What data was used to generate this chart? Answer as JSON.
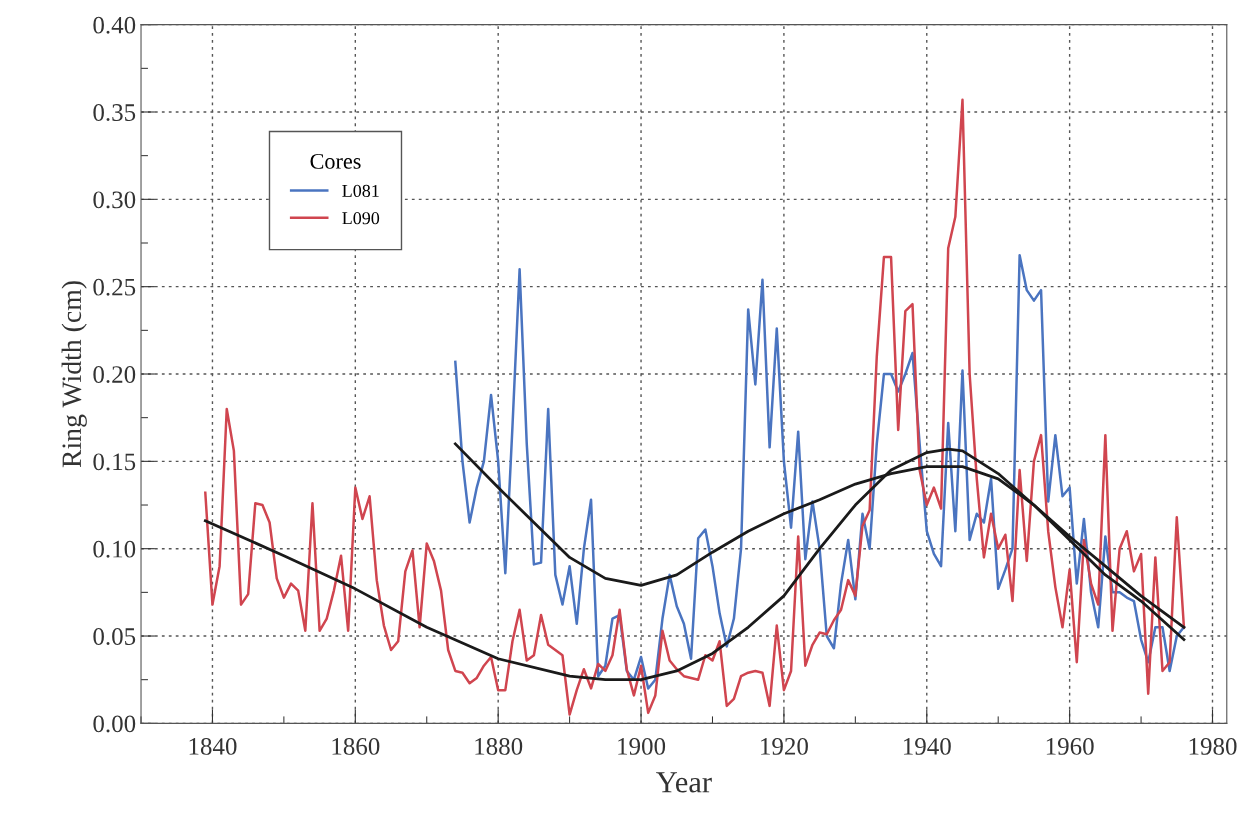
{
  "chart_data": {
    "type": "line",
    "xlabel": "Year",
    "ylabel": "Ring Width (cm)",
    "legend_title": "Cores",
    "legend": "top left",
    "grid": true,
    "marker": "none",
    "line_style": "solid",
    "xlim": [
      1830,
      1982
    ],
    "xticks": [
      1840,
      1860,
      1880,
      1900,
      1920,
      1940,
      1960,
      1980
    ],
    "ylim": [
      0,
      0.4
    ],
    "yticks": [
      {
        "value": 0,
        "label": "0.00"
      },
      {
        "value": 0.05,
        "label": "0.05"
      },
      {
        "value": 0.1,
        "label": "0.10"
      },
      {
        "value": 0.15,
        "label": "0.15"
      },
      {
        "value": 0.2,
        "label": "0.20"
      },
      {
        "value": 0.25,
        "label": "0.25"
      },
      {
        "value": 0.3,
        "label": "0.30"
      },
      {
        "value": 0.35,
        "label": "0.35"
      },
      {
        "value": 0.4,
        "label": "0.40"
      }
    ],
    "series": [
      {
        "name": "L081",
        "color": "#4a74c0",
        "x": [
          1874,
          1875,
          1876,
          1877,
          1878,
          1879,
          1880,
          1881,
          1882,
          1883,
          1884,
          1885,
          1886,
          1887,
          1888,
          1889,
          1890,
          1891,
          1892,
          1893,
          1894,
          1895,
          1896,
          1897,
          1898,
          1899,
          1900,
          1901,
          1902,
          1903,
          1904,
          1905,
          1906,
          1907,
          1908,
          1909,
          1910,
          1911,
          1912,
          1913,
          1914,
          1915,
          1916,
          1917,
          1918,
          1919,
          1920,
          1921,
          1922,
          1923,
          1924,
          1925,
          1926,
          1927,
          1928,
          1929,
          1930,
          1931,
          1932,
          1933,
          1934,
          1935,
          1936,
          1937,
          1938,
          1939,
          1940,
          1941,
          1942,
          1943,
          1944,
          1945,
          1946,
          1947,
          1948,
          1949,
          1950,
          1951,
          1952,
          1953,
          1954,
          1955,
          1956,
          1957,
          1958,
          1959,
          1960,
          1961,
          1962,
          1963,
          1964,
          1965,
          1966,
          1967,
          1968,
          1969,
          1970,
          1971,
          1972,
          1973,
          1974,
          1975,
          1976
        ],
        "values": [
          0.207,
          0.15,
          0.115,
          0.135,
          0.15,
          0.188,
          0.15,
          0.086,
          0.17,
          0.26,
          0.16,
          0.091,
          0.092,
          0.18,
          0.085,
          0.068,
          0.09,
          0.057,
          0.1,
          0.128,
          0.027,
          0.033,
          0.06,
          0.062,
          0.03,
          0.025,
          0.038,
          0.02,
          0.025,
          0.06,
          0.085,
          0.067,
          0.057,
          0.037,
          0.106,
          0.111,
          0.09,
          0.063,
          0.044,
          0.06,
          0.1,
          0.237,
          0.194,
          0.254,
          0.158,
          0.226,
          0.15,
          0.112,
          0.167,
          0.094,
          0.127,
          0.1,
          0.05,
          0.043,
          0.08,
          0.105,
          0.071,
          0.12,
          0.1,
          0.16,
          0.2,
          0.2,
          0.19,
          0.2,
          0.212,
          0.16,
          0.11,
          0.097,
          0.09,
          0.172,
          0.11,
          0.202,
          0.105,
          0.12,
          0.115,
          0.14,
          0.077,
          0.088,
          0.1,
          0.268,
          0.248,
          0.242,
          0.248,
          0.127,
          0.165,
          0.13,
          0.135,
          0.08,
          0.117,
          0.075,
          0.055,
          0.107,
          0.075,
          0.075,
          0.072,
          0.07,
          0.048,
          0.035,
          0.055,
          0.055,
          0.03,
          0.05,
          0.055
        ]
      },
      {
        "name": "L090",
        "color": "#d0454f",
        "x": [
          1839,
          1840,
          1841,
          1842,
          1843,
          1844,
          1845,
          1846,
          1847,
          1848,
          1849,
          1850,
          1851,
          1852,
          1853,
          1854,
          1855,
          1856,
          1857,
          1858,
          1859,
          1860,
          1861,
          1862,
          1863,
          1864,
          1865,
          1866,
          1867,
          1868,
          1869,
          1870,
          1871,
          1872,
          1873,
          1874,
          1875,
          1876,
          1877,
          1878,
          1879,
          1880,
          1881,
          1882,
          1883,
          1884,
          1885,
          1886,
          1887,
          1888,
          1889,
          1890,
          1891,
          1892,
          1893,
          1894,
          1895,
          1896,
          1897,
          1898,
          1899,
          1900,
          1901,
          1902,
          1903,
          1904,
          1905,
          1906,
          1907,
          1908,
          1909,
          1910,
          1911,
          1912,
          1913,
          1914,
          1915,
          1916,
          1917,
          1918,
          1919,
          1920,
          1921,
          1922,
          1923,
          1924,
          1925,
          1926,
          1927,
          1928,
          1929,
          1930,
          1931,
          1932,
          1933,
          1934,
          1935,
          1936,
          1937,
          1938,
          1939,
          1940,
          1941,
          1942,
          1943,
          1944,
          1945,
          1946,
          1947,
          1948,
          1949,
          1950,
          1951,
          1952,
          1953,
          1954,
          1955,
          1956,
          1957,
          1958,
          1959,
          1960,
          1961,
          1962,
          1963,
          1964,
          1965,
          1966,
          1967,
          1968,
          1969,
          1970,
          1971,
          1972,
          1973,
          1974,
          1975,
          1976
        ],
        "values": [
          0.132,
          0.068,
          0.09,
          0.18,
          0.156,
          0.068,
          0.074,
          0.126,
          0.125,
          0.115,
          0.083,
          0.072,
          0.08,
          0.076,
          0.053,
          0.126,
          0.053,
          0.06,
          0.076,
          0.096,
          0.053,
          0.135,
          0.117,
          0.13,
          0.082,
          0.056,
          0.042,
          0.047,
          0.087,
          0.099,
          0.055,
          0.103,
          0.093,
          0.076,
          0.042,
          0.03,
          0.029,
          0.023,
          0.026,
          0.033,
          0.038,
          0.019,
          0.019,
          0.047,
          0.065,
          0.036,
          0.039,
          0.062,
          0.045,
          0.042,
          0.039,
          0.005,
          0.019,
          0.031,
          0.02,
          0.034,
          0.03,
          0.039,
          0.065,
          0.031,
          0.016,
          0.033,
          0.006,
          0.016,
          0.053,
          0.036,
          0.031,
          0.027,
          0.026,
          0.025,
          0.039,
          0.036,
          0.047,
          0.01,
          0.014,
          0.027,
          0.029,
          0.03,
          0.029,
          0.01,
          0.056,
          0.019,
          0.03,
          0.107,
          0.033,
          0.045,
          0.052,
          0.051,
          0.059,
          0.065,
          0.082,
          0.073,
          0.113,
          0.122,
          0.21,
          0.267,
          0.267,
          0.168,
          0.236,
          0.24,
          0.145,
          0.125,
          0.135,
          0.123,
          0.272,
          0.29,
          0.357,
          0.2,
          0.14,
          0.095,
          0.12,
          0.1,
          0.108,
          0.07,
          0.145,
          0.093,
          0.15,
          0.165,
          0.11,
          0.078,
          0.055,
          0.088,
          0.035,
          0.105,
          0.08,
          0.068,
          0.165,
          0.053,
          0.1,
          0.11,
          0.087,
          0.097,
          0.017,
          0.095,
          0.03,
          0.035,
          0.118,
          0.055
        ]
      },
      {
        "color": "#1a1a1a",
        "x": [
          1874,
          1880,
          1885,
          1890,
          1895,
          1900,
          1905,
          1910,
          1915,
          1920,
          1925,
          1930,
          1935,
          1940,
          1945,
          1950,
          1955,
          1960,
          1965,
          1970,
          1976
        ],
        "values": [
          0.16,
          0.135,
          0.115,
          0.095,
          0.083,
          0.079,
          0.085,
          0.098,
          0.11,
          0.12,
          0.128,
          0.137,
          0.143,
          0.147,
          0.147,
          0.14,
          0.125,
          0.107,
          0.09,
          0.073,
          0.055
        ]
      },
      {
        "color": "#1a1a1a",
        "x": [
          1839,
          1850,
          1860,
          1870,
          1880,
          1890,
          1895,
          1900,
          1905,
          1910,
          1915,
          1920,
          1925,
          1930,
          1935,
          1940,
          1943,
          1945,
          1950,
          1955,
          1960,
          1965,
          1970,
          1976
        ],
        "values": [
          0.116,
          0.096,
          0.077,
          0.055,
          0.037,
          0.027,
          0.025,
          0.025,
          0.03,
          0.04,
          0.055,
          0.073,
          0.1,
          0.125,
          0.145,
          0.155,
          0.157,
          0.156,
          0.143,
          0.125,
          0.105,
          0.085,
          0.07,
          0.048
        ]
      }
    ]
  }
}
